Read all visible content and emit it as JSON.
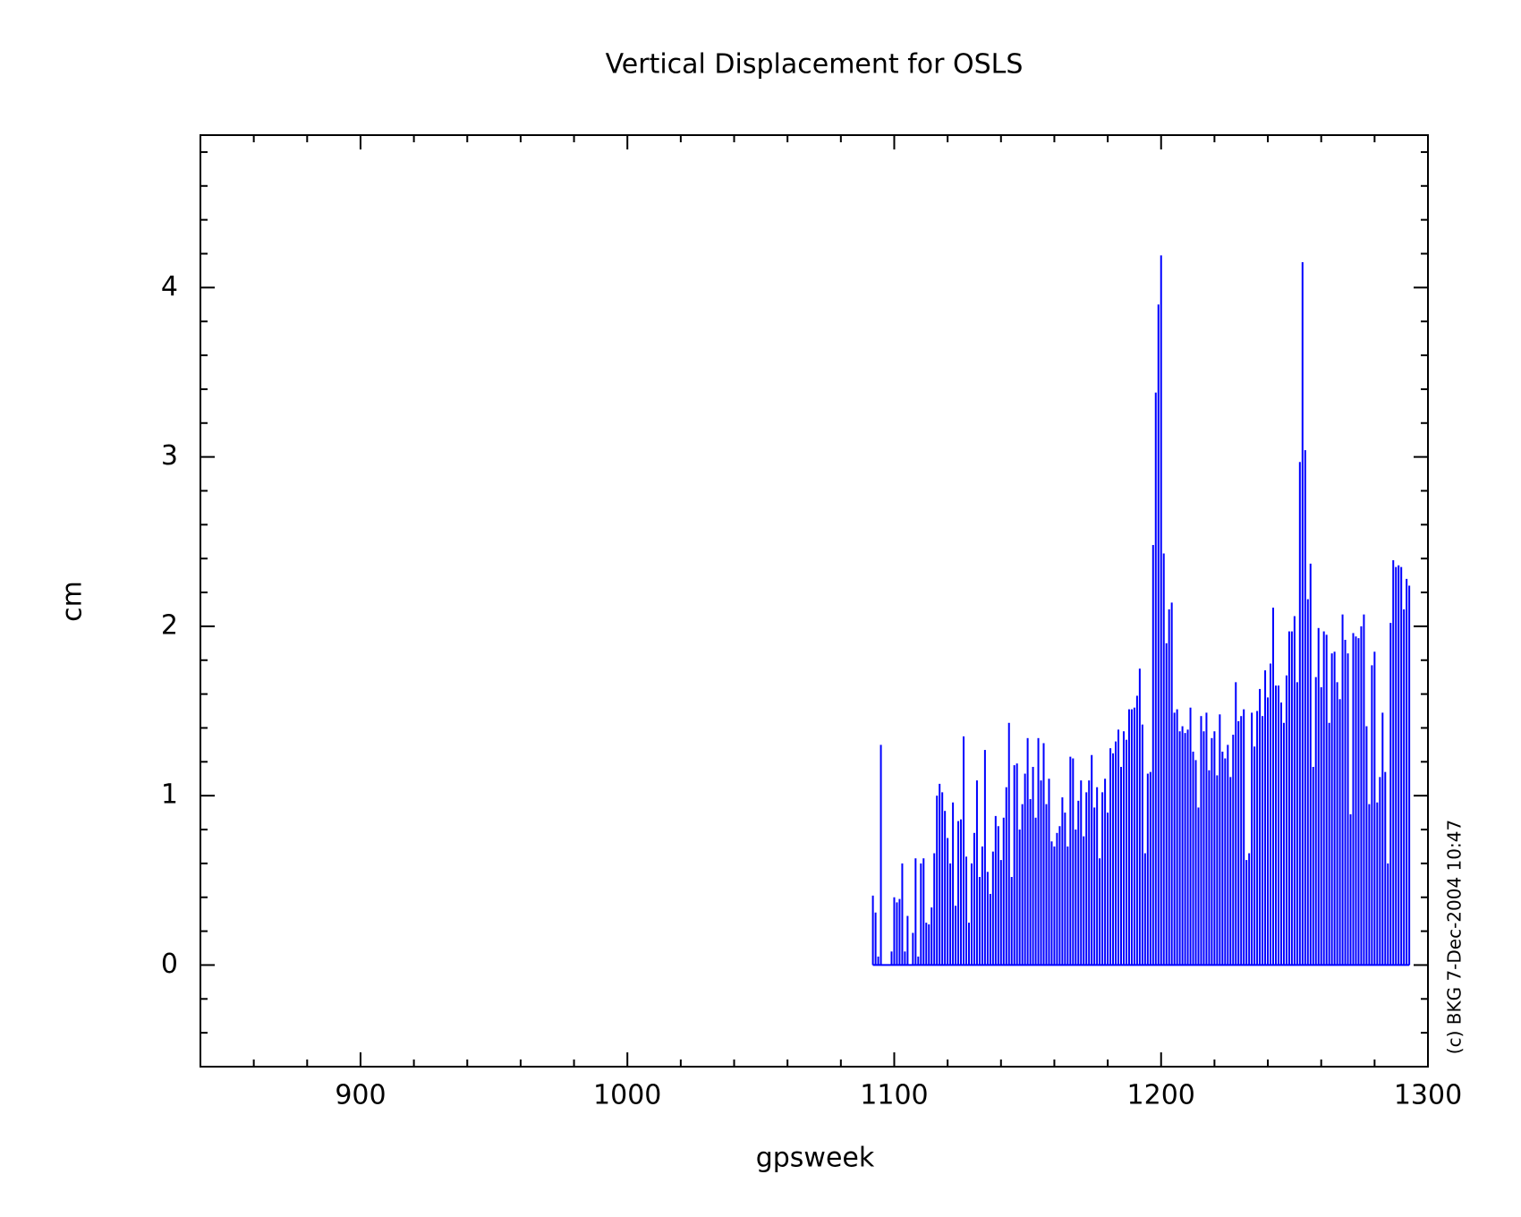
{
  "chart_data": {
    "type": "bar",
    "title": "Vertical Displacement for OSLS",
    "xlabel": "gpsweek",
    "ylabel": "cm",
    "annotation": "(c) BKG 7-Dec-2004 10:47",
    "color": "#0000ff",
    "xlim": [
      840,
      1300
    ],
    "ylim": [
      -0.6,
      4.9
    ],
    "xticks": [
      900,
      1000,
      1100,
      1200,
      1300
    ],
    "yticks": [
      0,
      1,
      2,
      3,
      4
    ],
    "xminorticks": [
      860,
      880,
      920,
      940,
      960,
      980,
      1020,
      1040,
      1060,
      1080,
      1120,
      1140,
      1160,
      1180,
      1220,
      1240,
      1260,
      1280
    ],
    "yminorticks": [
      -0.4,
      -0.2,
      0.2,
      0.4,
      0.6,
      0.8,
      1.2,
      1.4,
      1.6,
      1.8,
      2.2,
      2.4,
      2.6,
      2.8,
      3.2,
      3.4,
      3.6,
      3.8,
      4.2,
      4.4,
      4.6,
      4.8
    ],
    "x": [
      1092,
      1093,
      1094,
      1095,
      1099,
      1100,
      1101,
      1102,
      1103,
      1104,
      1105,
      1106,
      1107,
      1108,
      1109,
      1110,
      1111,
      1112,
      1113,
      1114,
      1115,
      1116,
      1117,
      1118,
      1119,
      1120,
      1121,
      1122,
      1123,
      1124,
      1125,
      1126,
      1127,
      1128,
      1129,
      1130,
      1131,
      1132,
      1133,
      1134,
      1135,
      1136,
      1137,
      1138,
      1139,
      1140,
      1141,
      1142,
      1143,
      1144,
      1145,
      1146,
      1147,
      1148,
      1149,
      1150,
      1151,
      1152,
      1153,
      1154,
      1155,
      1156,
      1157,
      1158,
      1159,
      1160,
      1161,
      1162,
      1163,
      1164,
      1165,
      1166,
      1167,
      1168,
      1169,
      1170,
      1171,
      1172,
      1173,
      1174,
      1175,
      1176,
      1177,
      1178,
      1179,
      1180,
      1181,
      1182,
      1183,
      1184,
      1185,
      1186,
      1187,
      1188,
      1189,
      1190,
      1191,
      1192,
      1193,
      1194,
      1195,
      1196,
      1197,
      1198,
      1199,
      1200,
      1201,
      1202,
      1203,
      1204,
      1205,
      1206,
      1207,
      1208,
      1209,
      1210,
      1211,
      1212,
      1213,
      1214,
      1215,
      1216,
      1217,
      1218,
      1219,
      1220,
      1221,
      1222,
      1223,
      1224,
      1225,
      1226,
      1227,
      1228,
      1229,
      1230,
      1231,
      1232,
      1233,
      1234,
      1235,
      1236,
      1237,
      1238,
      1239,
      1240,
      1241,
      1242,
      1243,
      1244,
      1245,
      1246,
      1247,
      1248,
      1249,
      1250,
      1251,
      1252,
      1253,
      1254,
      1255,
      1256,
      1257,
      1258,
      1259,
      1260,
      1261,
      1262,
      1263,
      1264,
      1265,
      1266,
      1267,
      1268,
      1269,
      1270,
      1271,
      1272,
      1273,
      1274,
      1275,
      1276,
      1277,
      1278,
      1279,
      1280,
      1281,
      1282,
      1283,
      1284,
      1285,
      1286,
      1287,
      1288,
      1289,
      1290,
      1291,
      1292,
      1293
    ],
    "values": [
      0.41,
      0.31,
      0.05,
      1.3,
      0.08,
      0.4,
      0.37,
      0.39,
      0.6,
      0.08,
      0.29,
      0.0,
      0.19,
      0.63,
      0.05,
      0.6,
      0.63,
      0.25,
      0.24,
      0.34,
      0.66,
      1.0,
      1.07,
      1.02,
      0.91,
      0.75,
      0.6,
      0.96,
      0.35,
      0.85,
      0.86,
      1.35,
      0.64,
      0.25,
      0.6,
      0.78,
      1.09,
      0.52,
      0.7,
      1.27,
      0.55,
      0.42,
      0.67,
      0.88,
      0.82,
      0.62,
      0.87,
      1.05,
      1.43,
      0.52,
      1.18,
      1.19,
      0.8,
      0.95,
      1.13,
      1.34,
      0.98,
      1.17,
      0.87,
      1.34,
      1.09,
      1.31,
      0.95,
      1.1,
      0.73,
      0.7,
      0.78,
      0.82,
      0.99,
      0.9,
      0.7,
      1.23,
      1.22,
      0.8,
      0.97,
      1.09,
      0.76,
      1.02,
      1.09,
      1.24,
      0.93,
      1.05,
      0.63,
      1.02,
      1.1,
      0.9,
      1.28,
      1.25,
      1.32,
      1.39,
      1.17,
      1.38,
      1.33,
      1.51,
      1.51,
      1.52,
      1.59,
      1.75,
      1.42,
      0.66,
      1.13,
      1.14,
      2.48,
      3.38,
      3.9,
      4.19,
      2.43,
      1.9,
      2.1,
      2.14,
      1.49,
      1.51,
      1.38,
      1.41,
      1.37,
      1.39,
      1.52,
      1.26,
      1.21,
      0.93,
      1.47,
      1.38,
      1.49,
      1.15,
      1.34,
      1.38,
      1.12,
      1.48,
      1.26,
      1.22,
      1.3,
      1.11,
      1.36,
      1.67,
      1.44,
      1.47,
      1.51,
      0.62,
      0.66,
      1.49,
      1.29,
      1.5,
      1.63,
      1.47,
      1.74,
      1.58,
      1.78,
      2.11,
      1.65,
      1.65,
      1.55,
      1.43,
      1.71,
      1.97,
      1.97,
      2.06,
      1.67,
      2.97,
      4.15,
      3.04,
      2.16,
      2.37,
      1.17,
      1.7,
      1.99,
      1.64,
      1.97,
      1.95,
      1.43,
      1.84,
      1.85,
      1.67,
      1.57,
      2.07,
      1.92,
      1.84,
      0.89,
      1.96,
      1.94,
      1.93,
      2.0,
      2.07,
      1.41,
      0.95,
      1.77,
      1.85,
      0.96,
      1.11,
      1.49,
      1.14,
      0.6,
      2.02,
      2.39,
      2.35,
      2.36,
      2.35,
      2.1,
      2.28,
      2.24
    ]
  }
}
